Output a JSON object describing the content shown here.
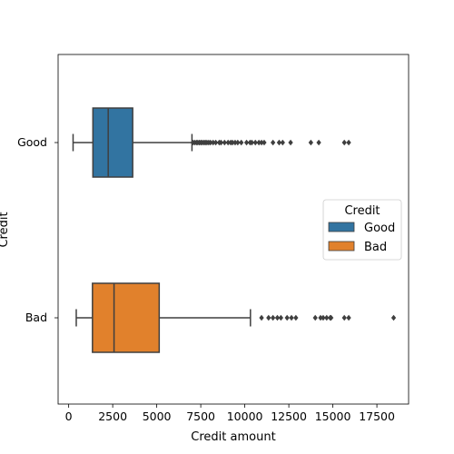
{
  "chart_data": {
    "type": "box",
    "orientation": "horizontal",
    "xlabel": "Credit amount",
    "ylabel": "Credit",
    "xlim": [
      -600,
      19300
    ],
    "xticks": [
      0,
      2500,
      5000,
      7500,
      10000,
      12500,
      15000,
      17500
    ],
    "categories": [
      "Good",
      "Bad"
    ],
    "series": [
      {
        "name": "Good",
        "color": "#1f77b4",
        "whisker_low": 250,
        "q1": 1375,
        "median": 2245,
        "q3": 3635,
        "whisker_high": 7000,
        "outliers": [
          7050,
          7150,
          7250,
          7330,
          7420,
          7500,
          7580,
          7680,
          7760,
          7850,
          7950,
          8050,
          8200,
          8350,
          8550,
          8650,
          8850,
          9050,
          9200,
          9300,
          9450,
          9600,
          9800,
          10100,
          10300,
          10400,
          10600,
          10800,
          10950,
          11100,
          11600,
          11950,
          12150,
          12600,
          13750,
          14200,
          15650,
          15900
        ]
      },
      {
        "name": "Bad",
        "color": "#ff7f0e",
        "whisker_low": 430,
        "q1": 1350,
        "median": 2575,
        "q3": 5140,
        "whisker_high": 10320,
        "outliers": [
          10950,
          11350,
          11600,
          11850,
          12050,
          12400,
          12650,
          12900,
          14000,
          14300,
          14450,
          14650,
          14850,
          14900,
          15650,
          15900,
          18450
        ]
      }
    ],
    "legend": {
      "title": "Credit",
      "entries": [
        "Good",
        "Bad"
      ],
      "position": "center-right"
    }
  }
}
